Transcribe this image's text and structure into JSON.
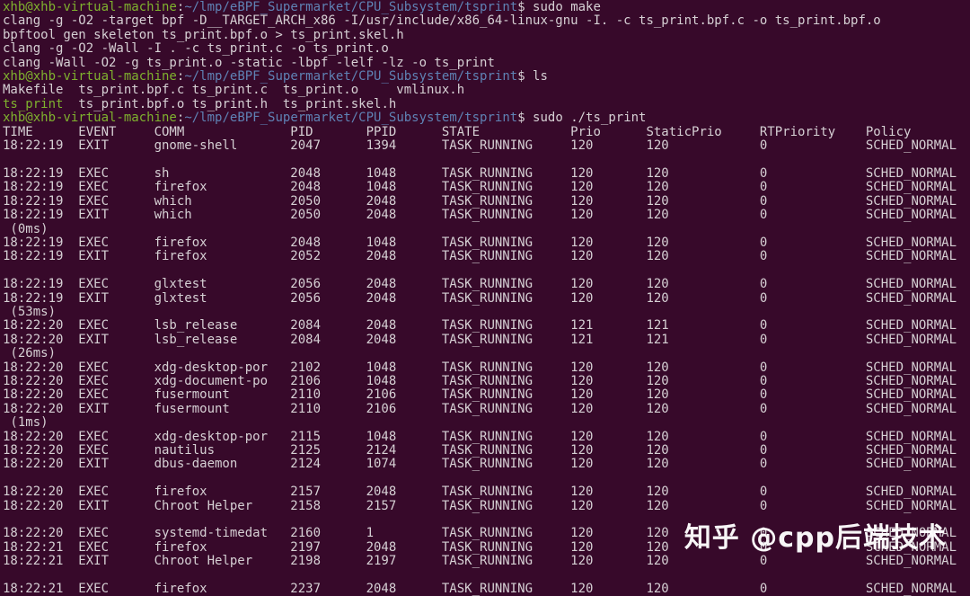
{
  "colors": {
    "background": "#37092a",
    "fg": "#d6d0d4",
    "green": "#7fb22e",
    "blue": "#5f82b4"
  },
  "prompt": {
    "user_host": "xhb@xhb-virtual-machine",
    "separator": ":",
    "path": "~/lmp/eBPF_Supermarket/CPU_Subsystem/tsprint",
    "dollar": "$"
  },
  "table": {
    "columns": [
      "TIME",
      "EVENT",
      "COMM",
      "PID",
      "PPID",
      "STATE",
      "Prio",
      "StaticPrio",
      "RTPriority",
      "Policy"
    ],
    "offsets": [
      0,
      10,
      20,
      38,
      48,
      58,
      75,
      85,
      100,
      114
    ]
  },
  "screen": {
    "lines": [
      {
        "type": "prompt",
        "command": "sudo make"
      },
      {
        "type": "text",
        "text": "clang -g -O2 -target bpf -D__TARGET_ARCH_x86 -I/usr/include/x86_64-linux-gnu -I. -c ts_print.bpf.c -o ts_print.bpf.o"
      },
      {
        "type": "text",
        "text": "bpftool gen skeleton ts_print.bpf.o > ts_print.skel.h"
      },
      {
        "type": "text",
        "text": "clang -g -O2 -Wall -I . -c ts_print.c -o ts_print.o"
      },
      {
        "type": "text",
        "text": "clang -Wall -O2 -g ts_print.o -static -lbpf -lelf -lz -o ts_print"
      },
      {
        "type": "prompt",
        "command": "ls"
      },
      {
        "type": "segments",
        "parts": [
          {
            "t": "Makefile  ts_print.bpf.c ts_print.c  ts_print.o     vmlinux.h"
          }
        ]
      },
      {
        "type": "segments",
        "parts": [
          {
            "t": "ts_print",
            "c": "green"
          },
          {
            "t": "  ts_print.bpf.o ts_print.h  ts_print.skel.h"
          }
        ]
      },
      {
        "type": "prompt",
        "command": "sudo ./ts_print"
      },
      {
        "type": "header"
      },
      {
        "type": "row",
        "fields": [
          "18:22:19",
          "EXIT",
          "gnome-shell",
          "2047",
          "1394",
          "TASK_RUNNING",
          "120",
          "120",
          "0",
          "SCHED_NORMAL"
        ]
      },
      {
        "type": "blank"
      },
      {
        "type": "row",
        "fields": [
          "18:22:19",
          "EXEC",
          "sh",
          "2048",
          "1048",
          "TASK_RUNNING",
          "120",
          "120",
          "0",
          "SCHED_NORMAL"
        ]
      },
      {
        "type": "row",
        "fields": [
          "18:22:19",
          "EXEC",
          "firefox",
          "2048",
          "1048",
          "TASK_RUNNING",
          "120",
          "120",
          "0",
          "SCHED_NORMAL"
        ]
      },
      {
        "type": "row",
        "fields": [
          "18:22:19",
          "EXEC",
          "which",
          "2050",
          "2048",
          "TASK_RUNNING",
          "120",
          "120",
          "0",
          "SCHED_NORMAL"
        ]
      },
      {
        "type": "row",
        "fields": [
          "18:22:19",
          "EXIT",
          "which",
          "2050",
          "2048",
          "TASK_RUNNING",
          "120",
          "120",
          "0",
          "SCHED_NORMAL"
        ]
      },
      {
        "type": "note",
        "text": "(0ms)"
      },
      {
        "type": "row",
        "fields": [
          "18:22:19",
          "EXEC",
          "firefox",
          "2048",
          "1048",
          "TASK_RUNNING",
          "120",
          "120",
          "0",
          "SCHED_NORMAL"
        ]
      },
      {
        "type": "row",
        "fields": [
          "18:22:19",
          "EXIT",
          "firefox",
          "2052",
          "2048",
          "TASK_RUNNING",
          "120",
          "120",
          "0",
          "SCHED_NORMAL"
        ]
      },
      {
        "type": "blank"
      },
      {
        "type": "row",
        "fields": [
          "18:22:19",
          "EXEC",
          "glxtest",
          "2056",
          "2048",
          "TASK_RUNNING",
          "120",
          "120",
          "0",
          "SCHED_NORMAL"
        ]
      },
      {
        "type": "row",
        "fields": [
          "18:22:19",
          "EXIT",
          "glxtest",
          "2056",
          "2048",
          "TASK_RUNNING",
          "120",
          "120",
          "0",
          "SCHED_NORMAL"
        ]
      },
      {
        "type": "note",
        "text": "(53ms)"
      },
      {
        "type": "row",
        "fields": [
          "18:22:20",
          "EXEC",
          "lsb_release",
          "2084",
          "2048",
          "TASK_RUNNING",
          "121",
          "121",
          "0",
          "SCHED_NORMAL"
        ]
      },
      {
        "type": "row",
        "fields": [
          "18:22:20",
          "EXIT",
          "lsb_release",
          "2084",
          "2048",
          "TASK_RUNNING",
          "121",
          "121",
          "0",
          "SCHED_NORMAL"
        ]
      },
      {
        "type": "note",
        "text": "(26ms)"
      },
      {
        "type": "row",
        "fields": [
          "18:22:20",
          "EXEC",
          "xdg-desktop-por",
          "2102",
          "1048",
          "TASK_RUNNING",
          "120",
          "120",
          "0",
          "SCHED_NORMAL"
        ]
      },
      {
        "type": "row",
        "fields": [
          "18:22:20",
          "EXEC",
          "xdg-document-po",
          "2106",
          "1048",
          "TASK_RUNNING",
          "120",
          "120",
          "0",
          "SCHED_NORMAL"
        ]
      },
      {
        "type": "row",
        "fields": [
          "18:22:20",
          "EXEC",
          "fusermount",
          "2110",
          "2106",
          "TASK_RUNNING",
          "120",
          "120",
          "0",
          "SCHED_NORMAL"
        ]
      },
      {
        "type": "row",
        "fields": [
          "18:22:20",
          "EXIT",
          "fusermount",
          "2110",
          "2106",
          "TASK_RUNNING",
          "120",
          "120",
          "0",
          "SCHED_NORMAL"
        ]
      },
      {
        "type": "note",
        "text": "(1ms)"
      },
      {
        "type": "row",
        "fields": [
          "18:22:20",
          "EXEC",
          "xdg-desktop-por",
          "2115",
          "1048",
          "TASK_RUNNING",
          "120",
          "120",
          "0",
          "SCHED_NORMAL"
        ]
      },
      {
        "type": "row",
        "fields": [
          "18:22:20",
          "EXEC",
          "nautilus",
          "2125",
          "2124",
          "TASK_RUNNING",
          "120",
          "120",
          "0",
          "SCHED_NORMAL"
        ]
      },
      {
        "type": "row",
        "fields": [
          "18:22:20",
          "EXIT",
          "dbus-daemon",
          "2124",
          "1074",
          "TASK_RUNNING",
          "120",
          "120",
          "0",
          "SCHED_NORMAL"
        ]
      },
      {
        "type": "blank"
      },
      {
        "type": "row",
        "fields": [
          "18:22:20",
          "EXEC",
          "firefox",
          "2157",
          "2048",
          "TASK_RUNNING",
          "120",
          "120",
          "0",
          "SCHED_NORMAL"
        ]
      },
      {
        "type": "row",
        "fields": [
          "18:22:20",
          "EXIT",
          "Chroot Helper",
          "2158",
          "2157",
          "TASK_RUNNING",
          "120",
          "120",
          "0",
          "SCHED_NORMAL"
        ]
      },
      {
        "type": "blank"
      },
      {
        "type": "row",
        "fields": [
          "18:22:20",
          "EXEC",
          "systemd-timedat",
          "2160",
          "1",
          "TASK_RUNNING",
          "120",
          "120",
          "0",
          "SCHED_NORMAL"
        ]
      },
      {
        "type": "row",
        "fields": [
          "18:22:21",
          "EXEC",
          "firefox",
          "2197",
          "2048",
          "TASK_RUNNING",
          "120",
          "120",
          "0",
          "SCHED_NORMAL"
        ]
      },
      {
        "type": "row",
        "fields": [
          "18:22:21",
          "EXIT",
          "Chroot Helper",
          "2198",
          "2197",
          "TASK_RUNNING",
          "120",
          "120",
          "0",
          "SCHED_NORMAL"
        ]
      },
      {
        "type": "blank"
      },
      {
        "type": "row",
        "fields": [
          "18:22:21",
          "EXEC",
          "firefox",
          "2237",
          "2048",
          "TASK_RUNNING",
          "120",
          "120",
          "0",
          "SCHED_NORMAL"
        ]
      }
    ]
  },
  "watermark": {
    "text": "知乎 @cpp后端技术"
  }
}
